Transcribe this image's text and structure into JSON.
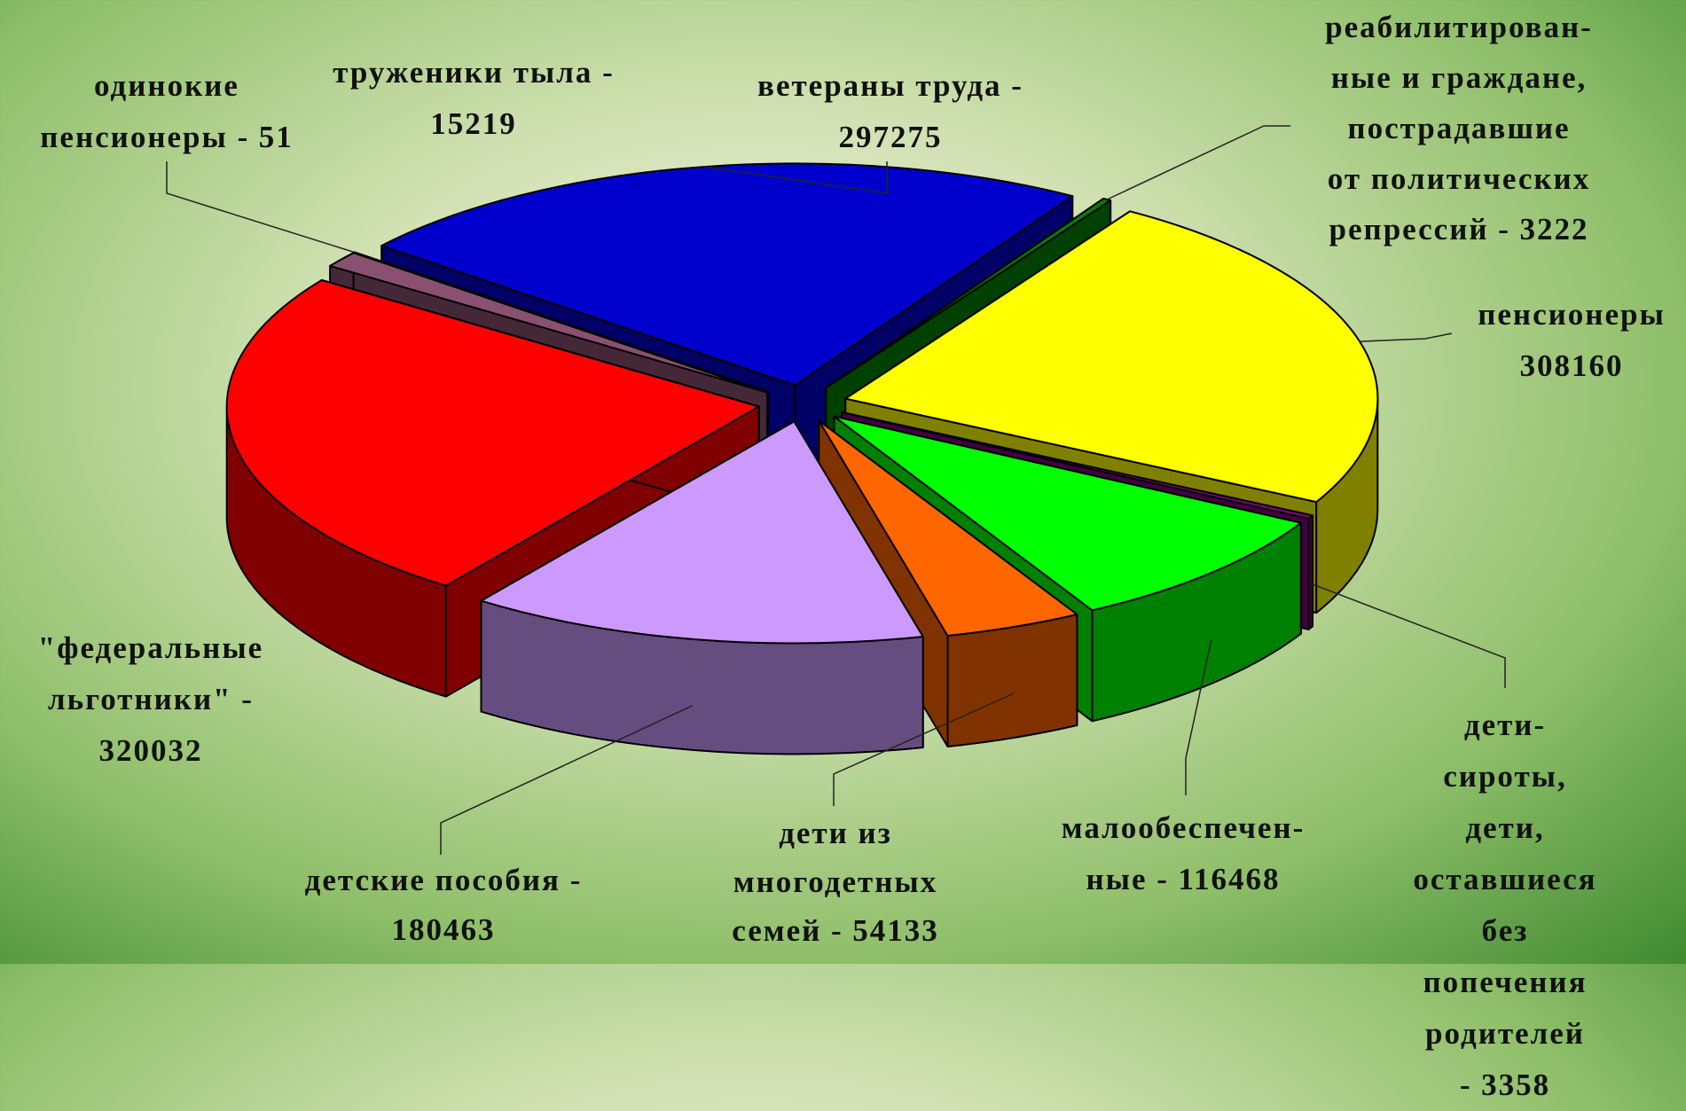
{
  "chart_data": {
    "type": "pie3d",
    "categories": [
      "ветераны труда -",
      "реабилитирован-\nные и граждане,\nпострадавшие\nот политических\nрепрессий -",
      "пенсионеры",
      "дети-сироты,\nдети,\nоставшиеся без\nпопечения\nродителей -",
      "малообеспечен-\nные -",
      "дети из\nмногодетных\nсемей -",
      "детские пособия -",
      "\"федеральные\nльготники\" -",
      "труженики тыла -",
      "одинокие\nпенсионеры -"
    ],
    "values": [
      297275,
      3222,
      308160,
      3358,
      116468,
      54133,
      180463,
      320032,
      15219,
      51
    ],
    "colors": [
      "#0000cc",
      "#008000",
      "#ffff00",
      "#800080",
      "#00ff00",
      "#ff6600",
      "#cc99ff",
      "#ff0000",
      "#8a5070",
      "#33ffff"
    ]
  }
}
